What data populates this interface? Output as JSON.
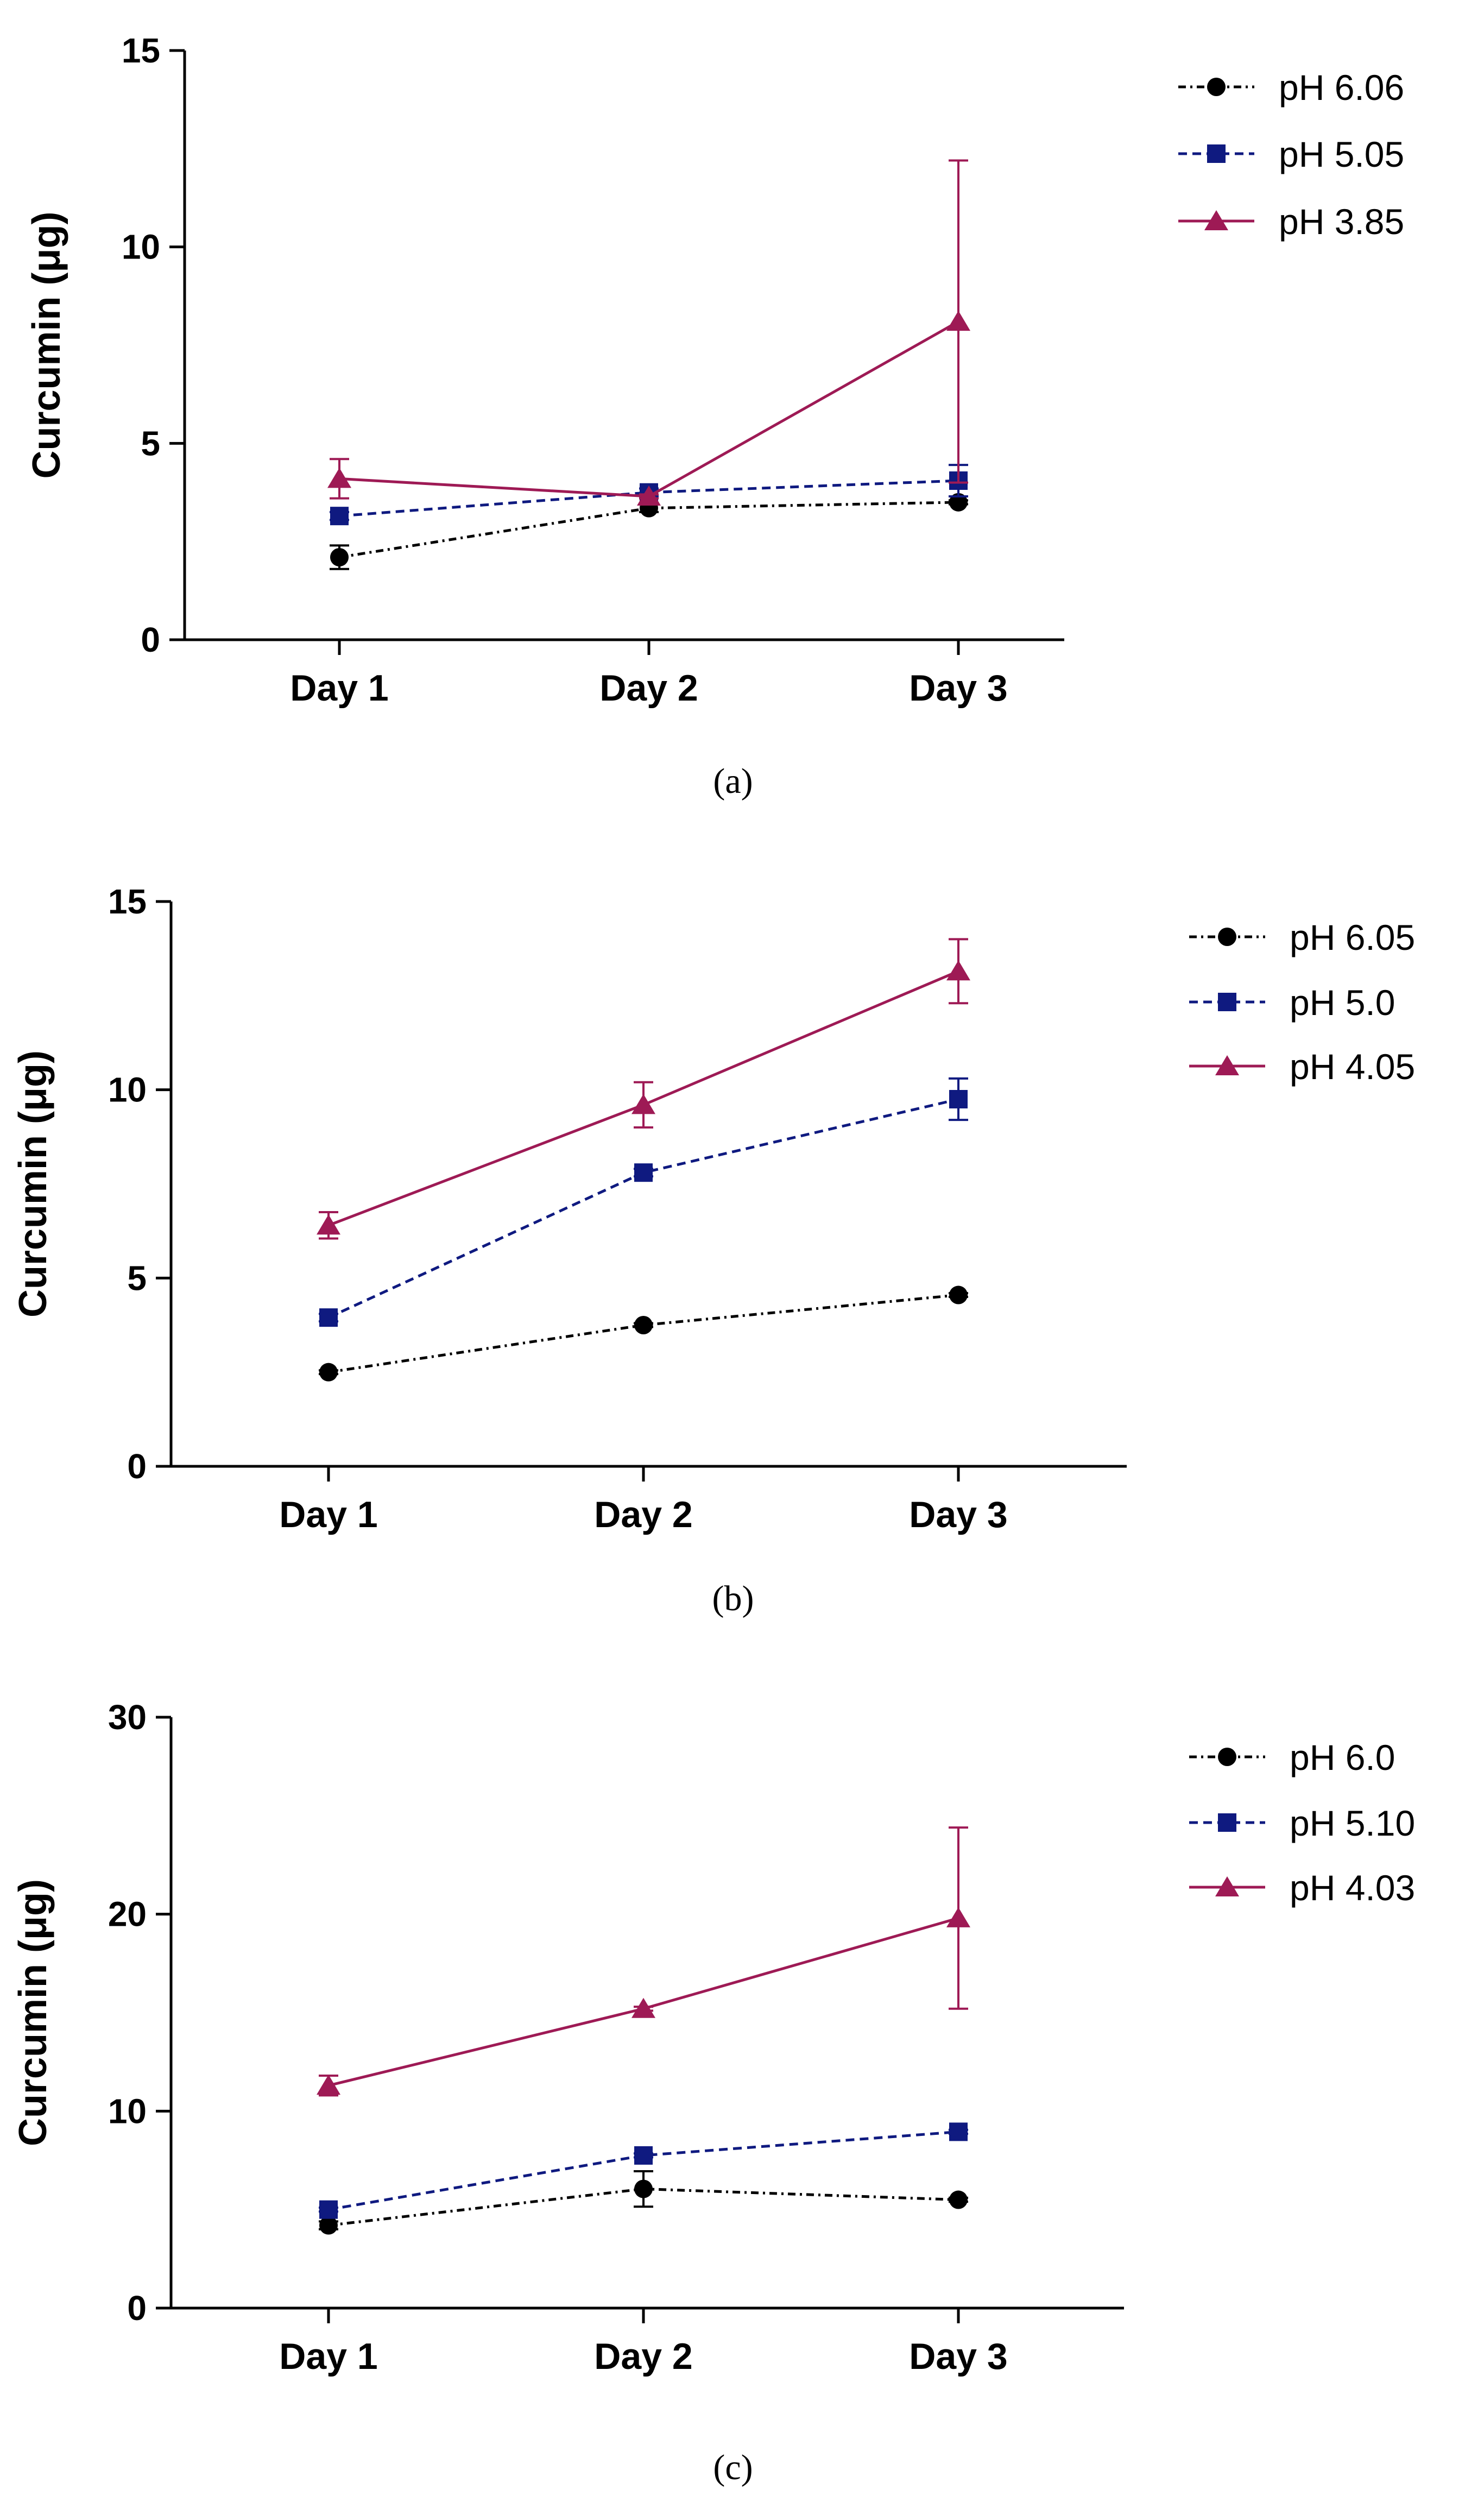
{
  "chart_data": [
    {
      "type": "line",
      "panel_label": "a",
      "categories": [
        "Day 1",
        "Day 2",
        "Day 3"
      ],
      "ylabel": "Curcumin (μg)",
      "xlabel": "",
      "ylim": [
        0,
        15
      ],
      "yticks": [
        0,
        5,
        10,
        15
      ],
      "series": [
        {
          "name": "pH 6.06",
          "color": "#000000",
          "marker": "circle",
          "line": "dashdot",
          "values": [
            2.1,
            3.35,
            3.5
          ],
          "errors": [
            0.3,
            0.1,
            0.05
          ]
        },
        {
          "name": "pH 5.05",
          "color": "#0f1a80",
          "marker": "square",
          "line": "dashed",
          "values": [
            3.15,
            3.75,
            4.05
          ],
          "errors": [
            0.1,
            0.1,
            0.4
          ]
        },
        {
          "name": "pH 3.85",
          "color": "#9e1a55",
          "marker": "triangle",
          "line": "solid",
          "values": [
            4.1,
            3.65,
            8.1
          ],
          "errors": [
            0.5,
            0.05,
            4.1
          ]
        }
      ]
    },
    {
      "type": "line",
      "panel_label": "b",
      "categories": [
        "Day 1",
        "Day 2",
        "Day 3"
      ],
      "ylabel": "Curcumin (μg)",
      "xlabel": "",
      "ylim": [
        0,
        15
      ],
      "yticks": [
        0,
        5,
        10,
        15
      ],
      "series": [
        {
          "name": "pH 6.05",
          "color": "#000000",
          "marker": "circle",
          "line": "dashdot",
          "values": [
            2.5,
            3.75,
            4.55
          ],
          "errors": [
            0.05,
            0.05,
            0.05
          ]
        },
        {
          "name": "pH 5.0",
          "color": "#0f1a80",
          "marker": "square",
          "line": "dashed",
          "values": [
            3.95,
            7.8,
            9.75
          ],
          "errors": [
            0.1,
            0.1,
            0.55
          ]
        },
        {
          "name": "pH 4.05",
          "color": "#9e1a55",
          "marker": "triangle",
          "line": "solid",
          "values": [
            6.4,
            9.6,
            13.15
          ],
          "errors": [
            0.35,
            0.6,
            0.85
          ]
        }
      ]
    },
    {
      "type": "line",
      "panel_label": "c",
      "categories": [
        "Day 1",
        "Day 2",
        "Day 3"
      ],
      "ylabel": "Curcumin (μg)",
      "xlabel": "",
      "ylim": [
        0,
        30
      ],
      "yticks": [
        0,
        10,
        20,
        30
      ],
      "series": [
        {
          "name": "pH 6.0",
          "color": "#000000",
          "marker": "circle",
          "line": "dashdot",
          "values": [
            4.2,
            6.05,
            5.5
          ],
          "errors": [
            0.2,
            0.9,
            0.1
          ]
        },
        {
          "name": "pH 5.10",
          "color": "#0f1a80",
          "marker": "square",
          "line": "dashed",
          "values": [
            5.0,
            7.75,
            8.95
          ],
          "errors": [
            0.1,
            0.1,
            0.1
          ]
        },
        {
          "name": "pH 4.03",
          "color": "#9e1a55",
          "marker": "triangle",
          "line": "solid",
          "values": [
            11.3,
            15.2,
            19.8
          ],
          "errors": [
            0.5,
            0.1,
            4.6
          ]
        }
      ]
    }
  ],
  "captions": [
    "(a)",
    "(b)",
    "(c)"
  ]
}
